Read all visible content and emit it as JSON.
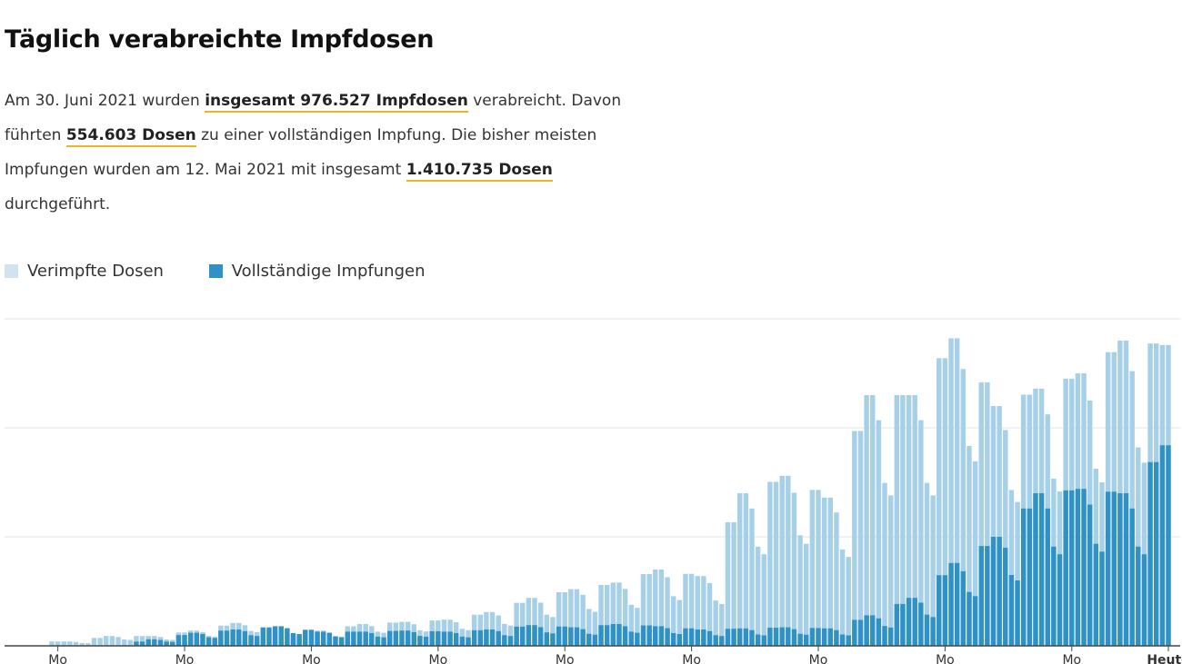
{
  "title": "Täglich verabreichte Impfdosen",
  "summary": {
    "p1": "Am 30. Juni 2021 wurden ",
    "hl1": "insgesamt 976.527 Impfdosen",
    "p2": " verabreicht. Davon führten ",
    "hl2": "554.603 Dosen",
    "p3": " zu einer vollständigen Impfung. Die bisher meisten Impfungen wurden am 12. Mai 2021 mit insgesamt ",
    "hl3": "1.410.735 Dosen",
    "p4": " durchgeführt."
  },
  "colors": {
    "light": "#a6d0e8",
    "dark": "#2f92c6",
    "grid": "#e6e6e6",
    "axis": "#444444",
    "accent": "#f0b323"
  },
  "chart_data": {
    "type": "bar",
    "stacked": false,
    "x_start": "2020-12-27",
    "x_end": "2021-06-30",
    "x_tick_labels": [
      "Mo",
      "Mo",
      "Mo",
      "Mo",
      "Mo",
      "Mo",
      "Mo",
      "Mo",
      "Mo",
      "Heute"
    ],
    "ylim": [
      0,
      1500000
    ],
    "y_gridlines": [
      0,
      500000,
      1000000,
      1500000
    ],
    "grid": true,
    "legend_position": "top-left",
    "series": [
      {
        "name": "Verimpfte Dosen",
        "color": "#a6d0e8",
        "weekly_pattern": [
          1.0,
          1.0,
          1.0,
          1.0,
          0.9,
          0.65,
          0.6
        ],
        "weekly_peaks": [
          20000,
          45000,
          45000,
          70000,
          105000,
          55000,
          70000,
          100000,
          110000,
          120000,
          155000,
          220000,
          260000,
          290000,
          350000,
          320000,
          700000,
          780000,
          680000,
          1150000,
          1150000,
          1410735,
          1100000,
          1180000,
          1250000,
          1400000,
          1380000,
          1320000,
          976527
        ]
      },
      {
        "name": "Vollständige Impfungen",
        "color": "#2f92c6",
        "weekly_pattern": [
          1.0,
          1.0,
          1.0,
          1.0,
          0.9,
          0.65,
          0.6
        ],
        "weekly_peaks": [
          0,
          0,
          30000,
          60000,
          75000,
          90000,
          65000,
          65000,
          70000,
          65000,
          75000,
          95000,
          85000,
          100000,
          90000,
          75000,
          80000,
          85000,
          80000,
          140000,
          220000,
          380000,
          500000,
          700000,
          720000,
          700000,
          920000,
          850000,
          554603
        ]
      }
    ]
  }
}
